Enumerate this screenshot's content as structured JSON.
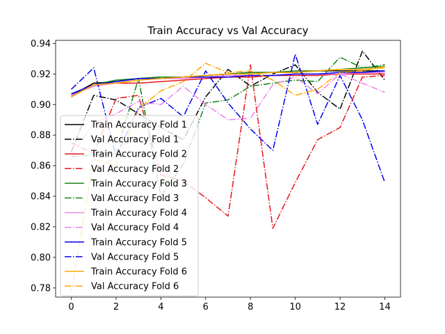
{
  "chart_data": {
    "type": "line",
    "title": "Train Accuracy vs Val Accuracy",
    "xlabel": "",
    "ylabel": "",
    "x": [
      0,
      1,
      2,
      3,
      4,
      5,
      6,
      7,
      8,
      9,
      10,
      11,
      12,
      13,
      14
    ],
    "xlim": [
      -0.7,
      14.7
    ],
    "ylim": [
      0.774,
      0.942
    ],
    "xticks": [
      0,
      2,
      4,
      6,
      8,
      10,
      12,
      14
    ],
    "yticks": [
      0.78,
      0.8,
      0.82,
      0.84,
      0.86,
      0.88,
      0.9,
      0.92,
      0.94
    ],
    "ytick_labels": [
      "0.78",
      "0.80",
      "0.82",
      "0.84",
      "0.86",
      "0.88",
      "0.90",
      "0.92",
      "0.94"
    ],
    "grid": false,
    "legend_position": "lower-left",
    "series": [
      {
        "name": "Train Accuracy Fold 1",
        "color": "#000000",
        "dash": "solid",
        "values": [
          0.906,
          0.914,
          0.915,
          0.917,
          0.918,
          0.918,
          0.919,
          0.92,
          0.921,
          0.921,
          0.921,
          0.922,
          0.922,
          0.922,
          0.922
        ]
      },
      {
        "name": "Val Accuracy Fold 1",
        "color": "#000000",
        "dash": "dashdot",
        "values": [
          0.869,
          0.906,
          0.903,
          0.894,
          0.885,
          0.877,
          0.905,
          0.923,
          0.912,
          0.92,
          0.926,
          0.908,
          0.897,
          0.935,
          0.916
        ]
      },
      {
        "name": "Train Accuracy Fold 2",
        "color": "#e8141c",
        "dash": "solid",
        "values": [
          0.905,
          0.913,
          0.914,
          0.914,
          0.915,
          0.916,
          0.917,
          0.918,
          0.918,
          0.919,
          0.919,
          0.919,
          0.92,
          0.92,
          0.92
        ]
      },
      {
        "name": "Val Accuracy Fold 2",
        "color": "#e8141c",
        "dash": "dashdot",
        "values": [
          0.875,
          0.868,
          0.904,
          0.906,
          0.854,
          0.85,
          0.839,
          0.827,
          0.926,
          0.819,
          0.849,
          0.877,
          0.885,
          0.918,
          0.919
        ]
      },
      {
        "name": "Train Accuracy Fold 3",
        "color": "#128412",
        "dash": "solid",
        "values": [
          0.905,
          0.913,
          0.916,
          0.917,
          0.918,
          0.918,
          0.919,
          0.92,
          0.921,
          0.921,
          0.922,
          0.922,
          0.923,
          0.924,
          0.925
        ]
      },
      {
        "name": "Val Accuracy Fold 3",
        "color": "#128412",
        "dash": "dashdot",
        "values": [
          0.866,
          0.867,
          0.868,
          0.917,
          0.84,
          0.861,
          0.901,
          0.903,
          0.912,
          0.914,
          0.916,
          0.915,
          0.931,
          0.924,
          0.926
        ]
      },
      {
        "name": "Train Accuracy Fold 4",
        "color": "#ee82ee",
        "dash": "solid",
        "values": [
          0.906,
          0.912,
          0.914,
          0.916,
          0.917,
          0.917,
          0.918,
          0.919,
          0.919,
          0.919,
          0.92,
          0.92,
          0.92,
          0.921,
          0.921
        ]
      },
      {
        "name": "Val Accuracy Fold 4",
        "color": "#ee82ee",
        "dash": "dashdot",
        "values": [
          0.866,
          0.888,
          0.894,
          0.902,
          0.9,
          0.912,
          0.9,
          0.89,
          0.891,
          0.913,
          0.918,
          0.907,
          0.92,
          0.914,
          0.908
        ]
      },
      {
        "name": "Train Accuracy Fold 5",
        "color": "#0000ee",
        "dash": "solid",
        "values": [
          0.907,
          0.913,
          0.915,
          0.917,
          0.917,
          0.918,
          0.918,
          0.918,
          0.919,
          0.919,
          0.92,
          0.92,
          0.921,
          0.921,
          0.922
        ]
      },
      {
        "name": "Val Accuracy Fold 5",
        "color": "#0000ee",
        "dash": "dashdot",
        "values": [
          0.91,
          0.924,
          0.866,
          0.898,
          0.904,
          0.892,
          0.922,
          0.901,
          0.884,
          0.87,
          0.933,
          0.887,
          0.919,
          0.89,
          0.849
        ]
      },
      {
        "name": "Train Accuracy Fold 6",
        "color": "#ffa500",
        "dash": "solid",
        "values": [
          0.905,
          0.913,
          0.914,
          0.916,
          0.917,
          0.918,
          0.919,
          0.92,
          0.92,
          0.921,
          0.921,
          0.922,
          0.923,
          0.923,
          0.924
        ]
      },
      {
        "name": "Val Accuracy Fold 6",
        "color": "#ffa500",
        "dash": "dashdot",
        "values": [
          0.778,
          0.864,
          0.86,
          0.897,
          0.909,
          0.915,
          0.927,
          0.921,
          0.922,
          0.916,
          0.906,
          0.91,
          0.921,
          0.922,
          0.925
        ]
      }
    ]
  }
}
